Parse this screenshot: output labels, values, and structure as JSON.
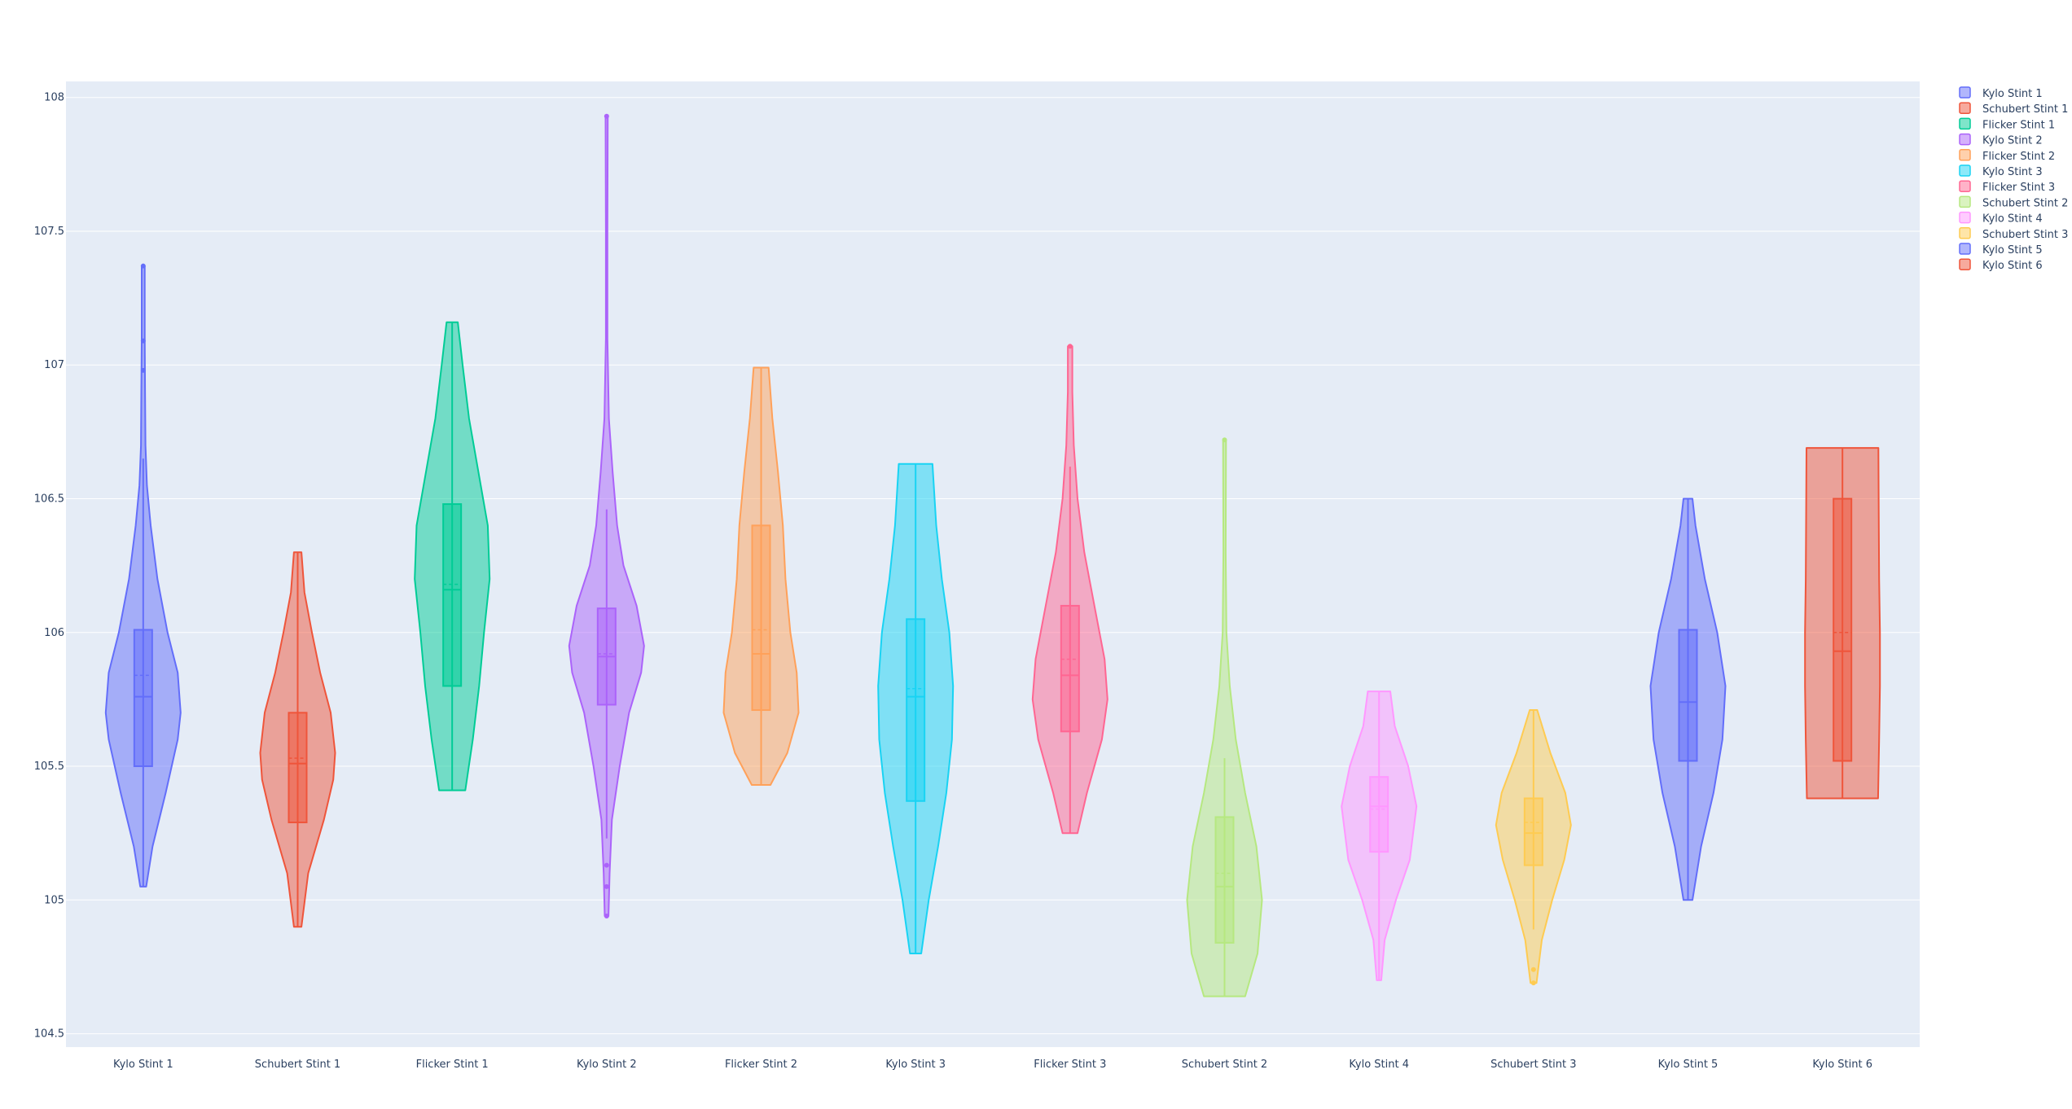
{
  "chart_data": {
    "type": "violin",
    "title": "",
    "xlabel": "",
    "ylabel": "",
    "ylim": [
      104.45,
      108.06
    ],
    "y_ticks": [
      "104.5",
      "105",
      "105.5",
      "106",
      "106.5",
      "107",
      "107.5",
      "108"
    ],
    "categories": [
      "Kylo Stint 1",
      "Schubert Stint 1",
      "Flicker Stint 1",
      "Kylo Stint 2",
      "Flicker Stint 2",
      "Kylo Stint 3",
      "Flicker Stint 3",
      "Schubert Stint 2",
      "Kylo Stint 4",
      "Schubert Stint 3",
      "Kylo Stint 5",
      "Kylo Stint 6"
    ],
    "legend_position": "top-right",
    "grid": true,
    "plot_background": "#E5ECF6",
    "series": [
      {
        "name": "Kylo Stint 1",
        "color": "#636EFA",
        "min": 105.05,
        "q1": 105.5,
        "median": 105.76,
        "mean": 105.84,
        "q3": 106.01,
        "max": 107.37,
        "upper_fence": 106.65,
        "lower_fence": 105.05,
        "outliers": [
          107.09,
          106.98,
          107.37
        ],
        "density": [
          [
            105.05,
            0.08
          ],
          [
            105.2,
            0.25
          ],
          [
            105.4,
            0.6
          ],
          [
            105.6,
            0.92
          ],
          [
            105.7,
            1.0
          ],
          [
            105.85,
            0.92
          ],
          [
            106.0,
            0.65
          ],
          [
            106.2,
            0.38
          ],
          [
            106.4,
            0.2
          ],
          [
            106.55,
            0.1
          ],
          [
            106.7,
            0.06
          ],
          [
            106.9,
            0.05
          ],
          [
            107.1,
            0.04
          ],
          [
            107.3,
            0.04
          ],
          [
            107.37,
            0.04
          ]
        ]
      },
      {
        "name": "Schubert Stint 1",
        "color": "#EF553B",
        "min": 104.9,
        "q1": 105.29,
        "median": 105.51,
        "mean": 105.53,
        "q3": 105.7,
        "max": 106.3,
        "upper_fence": 106.3,
        "lower_fence": 104.9,
        "outliers": [],
        "density": [
          [
            104.9,
            0.1
          ],
          [
            105.1,
            0.28
          ],
          [
            105.3,
            0.7
          ],
          [
            105.45,
            0.95
          ],
          [
            105.55,
            1.0
          ],
          [
            105.7,
            0.88
          ],
          [
            105.85,
            0.6
          ],
          [
            106.0,
            0.38
          ],
          [
            106.15,
            0.18
          ],
          [
            106.3,
            0.1
          ]
        ]
      },
      {
        "name": "Flicker Stint 1",
        "color": "#00CC96",
        "min": 105.41,
        "q1": 105.8,
        "median": 106.16,
        "mean": 106.18,
        "q3": 106.48,
        "max": 107.16,
        "upper_fence": 107.16,
        "lower_fence": 105.41,
        "outliers": [],
        "density": [
          [
            105.41,
            0.35
          ],
          [
            105.6,
            0.55
          ],
          [
            105.8,
            0.72
          ],
          [
            106.0,
            0.85
          ],
          [
            106.2,
            1.0
          ],
          [
            106.4,
            0.95
          ],
          [
            106.6,
            0.7
          ],
          [
            106.8,
            0.45
          ],
          [
            107.0,
            0.28
          ],
          [
            107.16,
            0.15
          ]
        ]
      },
      {
        "name": "Kylo Stint 2",
        "color": "#AB63FA",
        "min": 104.94,
        "q1": 105.73,
        "median": 105.91,
        "mean": 105.92,
        "q3": 106.09,
        "max": 107.93,
        "upper_fence": 106.46,
        "lower_fence": 105.23,
        "outliers": [
          105.13,
          105.05,
          104.94,
          107.93
        ],
        "density": [
          [
            104.94,
            0.05
          ],
          [
            105.1,
            0.08
          ],
          [
            105.3,
            0.14
          ],
          [
            105.5,
            0.35
          ],
          [
            105.7,
            0.6
          ],
          [
            105.85,
            0.92
          ],
          [
            105.95,
            1.0
          ],
          [
            106.1,
            0.8
          ],
          [
            106.25,
            0.45
          ],
          [
            106.4,
            0.28
          ],
          [
            106.6,
            0.16
          ],
          [
            106.8,
            0.06
          ],
          [
            107.1,
            0.02
          ],
          [
            107.5,
            0.02
          ],
          [
            107.93,
            0.03
          ]
        ]
      },
      {
        "name": "Flicker Stint 2",
        "color": "#FFA15A",
        "min": 105.43,
        "q1": 105.71,
        "median": 105.92,
        "mean": 106.01,
        "q3": 106.4,
        "max": 106.99,
        "upper_fence": 106.99,
        "lower_fence": 105.43,
        "outliers": [],
        "density": [
          [
            105.43,
            0.25
          ],
          [
            105.55,
            0.7
          ],
          [
            105.7,
            1.0
          ],
          [
            105.85,
            0.95
          ],
          [
            106.0,
            0.78
          ],
          [
            106.2,
            0.65
          ],
          [
            106.4,
            0.58
          ],
          [
            106.6,
            0.45
          ],
          [
            106.8,
            0.3
          ],
          [
            106.99,
            0.2
          ]
        ]
      },
      {
        "name": "Kylo Stint 3",
        "color": "#19D3F3",
        "min": 104.8,
        "q1": 105.37,
        "median": 105.76,
        "mean": 105.79,
        "q3": 106.05,
        "max": 106.63,
        "upper_fence": 106.63,
        "lower_fence": 104.8,
        "outliers": [],
        "density": [
          [
            104.8,
            0.15
          ],
          [
            105.0,
            0.35
          ],
          [
            105.2,
            0.6
          ],
          [
            105.4,
            0.82
          ],
          [
            105.6,
            0.97
          ],
          [
            105.8,
            1.0
          ],
          [
            106.0,
            0.9
          ],
          [
            106.2,
            0.7
          ],
          [
            106.4,
            0.55
          ],
          [
            106.63,
            0.45
          ]
        ]
      },
      {
        "name": "Flicker Stint 3",
        "color": "#FF6692",
        "min": 105.25,
        "q1": 105.63,
        "median": 105.84,
        "mean": 105.9,
        "q3": 106.1,
        "max": 107.07,
        "upper_fence": 106.62,
        "lower_fence": 105.25,
        "outliers": [
          107.07
        ],
        "density": [
          [
            105.25,
            0.2
          ],
          [
            105.4,
            0.45
          ],
          [
            105.6,
            0.85
          ],
          [
            105.75,
            1.0
          ],
          [
            105.9,
            0.92
          ],
          [
            106.1,
            0.65
          ],
          [
            106.3,
            0.38
          ],
          [
            106.5,
            0.2
          ],
          [
            106.7,
            0.1
          ],
          [
            106.9,
            0.06
          ],
          [
            107.07,
            0.06
          ]
        ]
      },
      {
        "name": "Schubert Stint 2",
        "color": "#B6E880",
        "min": 104.64,
        "q1": 104.84,
        "median": 105.05,
        "mean": 105.1,
        "q3": 105.31,
        "max": 106.72,
        "upper_fence": 105.53,
        "lower_fence": 104.64,
        "outliers": [
          106.72
        ],
        "density": [
          [
            104.64,
            0.55
          ],
          [
            104.8,
            0.88
          ],
          [
            105.0,
            1.0
          ],
          [
            105.2,
            0.85
          ],
          [
            105.4,
            0.55
          ],
          [
            105.6,
            0.3
          ],
          [
            105.8,
            0.14
          ],
          [
            106.0,
            0.05
          ],
          [
            106.3,
            0.03
          ],
          [
            106.72,
            0.04
          ]
        ]
      },
      {
        "name": "Kylo Stint 4",
        "color": "#FF97FF",
        "min": 104.7,
        "q1": 105.18,
        "median": 105.35,
        "mean": 105.34,
        "q3": 105.46,
        "max": 105.78,
        "upper_fence": 105.78,
        "lower_fence": 104.7,
        "outliers": [],
        "density": [
          [
            104.7,
            0.06
          ],
          [
            104.85,
            0.15
          ],
          [
            105.0,
            0.45
          ],
          [
            105.15,
            0.82
          ],
          [
            105.35,
            1.0
          ],
          [
            105.5,
            0.78
          ],
          [
            105.65,
            0.42
          ],
          [
            105.78,
            0.3
          ]
        ]
      },
      {
        "name": "Schubert Stint 3",
        "color": "#FECB52",
        "min": 104.69,
        "q1": 105.13,
        "median": 105.25,
        "mean": 105.29,
        "q3": 105.38,
        "max": 105.71,
        "upper_fence": 105.71,
        "lower_fence": 104.89,
        "outliers": [
          104.74,
          104.69
        ],
        "density": [
          [
            104.69,
            0.08
          ],
          [
            104.85,
            0.22
          ],
          [
            105.0,
            0.5
          ],
          [
            105.15,
            0.82
          ],
          [
            105.28,
            1.0
          ],
          [
            105.4,
            0.85
          ],
          [
            105.55,
            0.45
          ],
          [
            105.71,
            0.1
          ]
        ]
      },
      {
        "name": "Kylo Stint 5",
        "color": "#636EFA",
        "min": 105.0,
        "q1": 105.52,
        "median": 105.74,
        "mean": 105.74,
        "q3": 106.01,
        "max": 106.5,
        "upper_fence": 106.5,
        "lower_fence": 105.0,
        "outliers": [],
        "density": [
          [
            105.0,
            0.12
          ],
          [
            105.2,
            0.35
          ],
          [
            105.4,
            0.68
          ],
          [
            105.6,
            0.92
          ],
          [
            105.8,
            1.0
          ],
          [
            106.0,
            0.78
          ],
          [
            106.2,
            0.45
          ],
          [
            106.4,
            0.2
          ],
          [
            106.5,
            0.12
          ]
        ]
      },
      {
        "name": "Kylo Stint 6",
        "color": "#EF553B",
        "min": 105.38,
        "q1": 105.52,
        "median": 105.93,
        "mean": 106.0,
        "q3": 106.5,
        "max": 106.69,
        "upper_fence": 106.69,
        "lower_fence": 105.38,
        "outliers": [],
        "density": [
          [
            105.38,
            0.95
          ],
          [
            105.6,
            0.98
          ],
          [
            105.8,
            1.0
          ],
          [
            106.0,
            1.0
          ],
          [
            106.2,
            0.98
          ],
          [
            106.4,
            0.97
          ],
          [
            106.69,
            0.96
          ]
        ]
      }
    ]
  }
}
